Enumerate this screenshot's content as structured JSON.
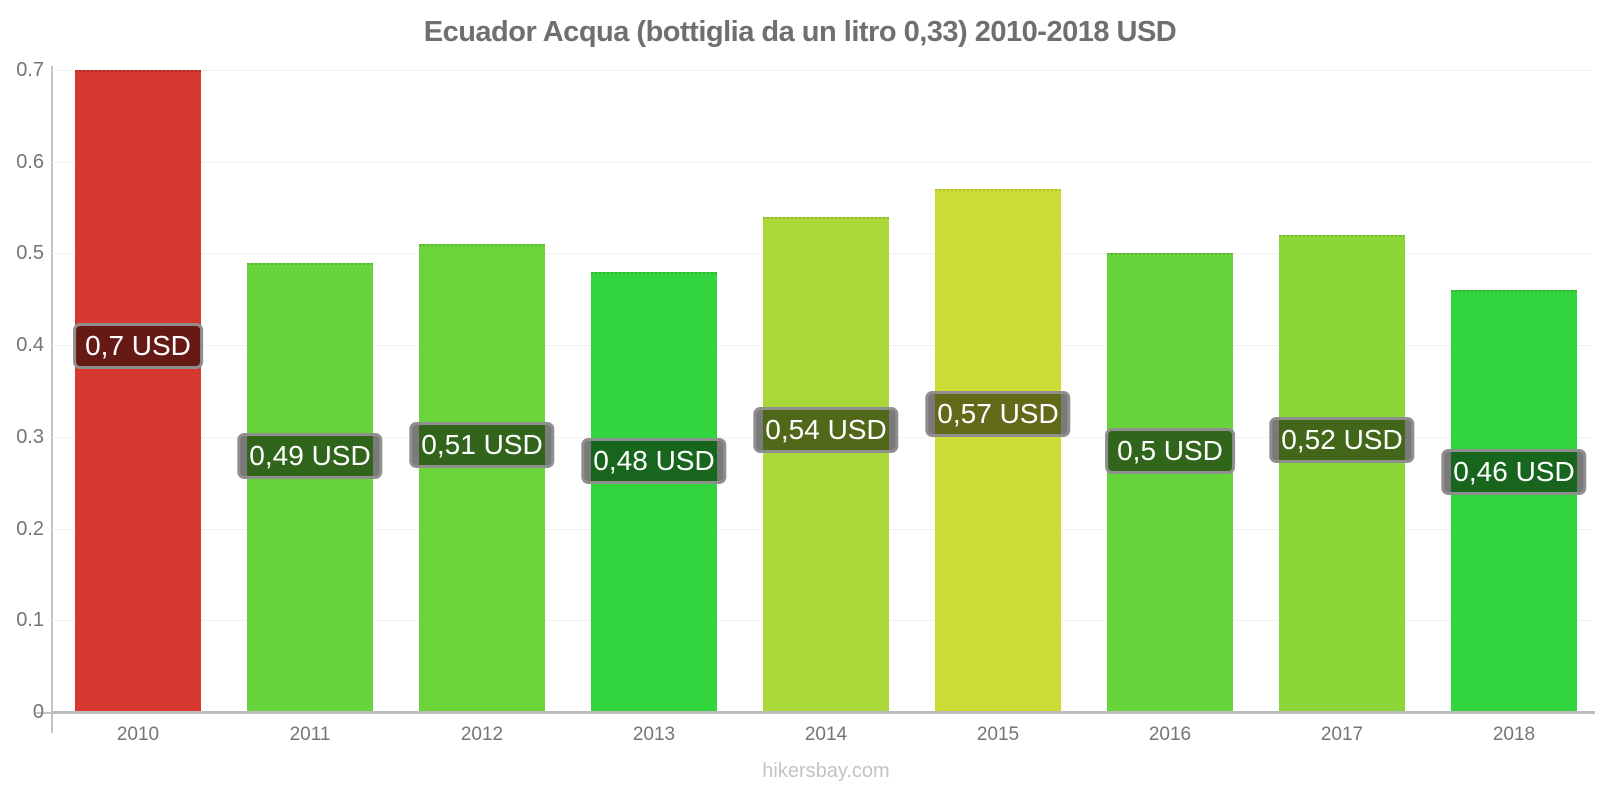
{
  "chart_data": {
    "type": "bar",
    "title": "Ecuador Acqua (bottiglia da un litro 0,33) 2010-2018 USD",
    "footer": "hikersbay.com",
    "categories": [
      "2010",
      "2011",
      "2012",
      "2013",
      "2014",
      "2015",
      "2016",
      "2017",
      "2018"
    ],
    "values": [
      0.7,
      0.49,
      0.51,
      0.48,
      0.54,
      0.57,
      0.5,
      0.52,
      0.46
    ],
    "bar_labels": [
      "0,7 USD",
      "0,49 USD",
      "0,51 USD",
      "0,48 USD",
      "0,54 USD",
      "0,57 USD",
      "0,5 USD",
      "0,52 USD",
      "0,46 USD"
    ],
    "bar_colors": [
      "#d6372f",
      "#66d43a",
      "#6ad43a",
      "#33d53f",
      "#a9d838",
      "#cddc35",
      "#66d43a",
      "#8cd737",
      "#33d53f"
    ],
    "unit": "USD",
    "xlabel": "",
    "ylabel": "",
    "ylim": [
      0,
      0.7
    ],
    "yticks": [
      "0",
      "0.1",
      "0.2",
      "0.3",
      "0.4",
      "0.5",
      "0.6",
      "0.7"
    ],
    "grid": "horizontal-faint",
    "legend": "none",
    "colors": {
      "axis": "#c4c4c4",
      "baseline": "#bcbcbc",
      "gridline": "#f2f2f2",
      "tick_text": "#757575",
      "title_text": "#6f6f6f",
      "footer_text": "#c3c3c3",
      "label_bg": "rgba(0,0,0,0.52)",
      "label_border": "#8f8f8f",
      "label_text": "#ffffff"
    }
  }
}
